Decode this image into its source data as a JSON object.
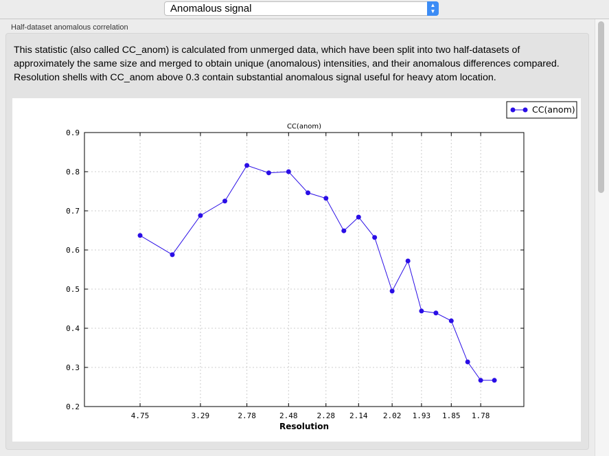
{
  "header": {
    "selector_value": "Anomalous signal",
    "selector_icon": "updown-chevron-icon"
  },
  "group": {
    "label": "Half-dataset anomalous correlation",
    "description": "This statistic (also called CC_anom) is calculated from unmerged data, which have been split into two half-datasets of approximately the same size and merged to obtain unique (anomalous) intensities, and their anomalous differences compared.  Resolution shells with CC_anom above 0.3 contain substantial anomalous signal useful for heavy atom location."
  },
  "chart_data": {
    "type": "line",
    "title": "CC(anom)",
    "xlabel": "Resolution",
    "ylabel": "",
    "x_scale": "1/d^2",
    "xlim_inv_d2": [
      0,
      0.35
    ],
    "ylim": [
      0.2,
      0.9
    ],
    "yticks": [
      "0.2",
      "0.3",
      "0.4",
      "0.5",
      "0.6",
      "0.7",
      "0.8",
      "0.9"
    ],
    "xticks": [
      "4.75",
      "3.29",
      "2.78",
      "2.48",
      "2.28",
      "2.14",
      "2.02",
      "1.93",
      "1.85",
      "1.78"
    ],
    "grid": true,
    "legend_position": "top-right",
    "series": [
      {
        "name": "CC(anom)",
        "color": "#2a0ee6",
        "x": [
          4.75,
          3.78,
          3.29,
          2.99,
          2.78,
          2.61,
          2.48,
          2.37,
          2.28,
          2.2,
          2.14,
          2.08,
          2.02,
          1.97,
          1.93,
          1.89,
          1.85,
          1.81,
          1.78,
          1.75
        ],
        "values": [
          0.637,
          0.588,
          0.688,
          0.725,
          0.816,
          0.797,
          0.8,
          0.746,
          0.732,
          0.649,
          0.684,
          0.632,
          0.495,
          0.572,
          0.444,
          0.439,
          0.419,
          0.314,
          0.267,
          0.267
        ]
      }
    ]
  }
}
